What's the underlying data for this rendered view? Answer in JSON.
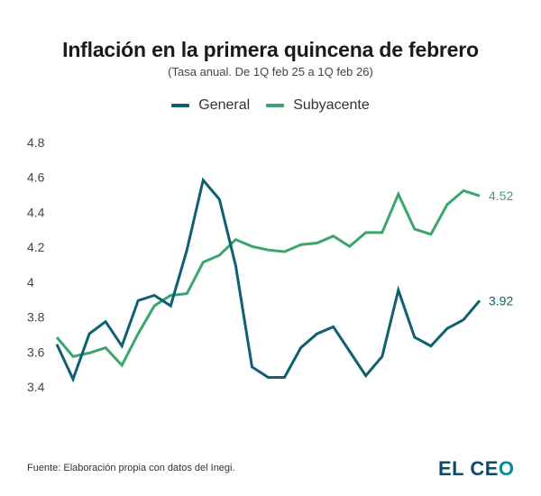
{
  "header": {
    "title": "Inflación en la primera quincena de febrero",
    "subtitle": "(Tasa anual. De 1Q feb 25 a 1Q feb 26)"
  },
  "footer": {
    "source": "Fuente: Elaboración propia con datos del Inegi.",
    "logo_main": "EL CE",
    "logo_last": "O"
  },
  "chart_data": {
    "type": "line",
    "title": "Inflación en la primera quincena de febrero",
    "subtitle": "(Tasa anual. De 1Q feb 25 a 1Q feb 26)",
    "xlabel": "",
    "ylabel": "",
    "ylim": [
      3.4,
      4.8
    ],
    "yticks": [
      4.8,
      4.6,
      4.4,
      4.2,
      4,
      3.8,
      3.6,
      3.4
    ],
    "ytick_labels": [
      "4.8",
      "4.6",
      "4.4",
      "4.2",
      "4",
      "3.8",
      "3.6",
      "3.4"
    ],
    "grid": false,
    "legend_position": "top-center",
    "x": [
      1,
      2,
      3,
      4,
      5,
      6,
      7,
      8,
      9,
      10,
      11,
      12,
      13,
      14,
      15,
      16,
      17,
      18,
      19,
      20,
      21,
      22,
      23,
      24,
      25,
      26,
      27
    ],
    "series": [
      {
        "name": "General",
        "color": "#0f6170",
        "values": [
          3.67,
          3.47,
          3.73,
          3.8,
          3.66,
          3.92,
          3.95,
          3.89,
          4.21,
          4.61,
          4.5,
          4.12,
          3.54,
          3.48,
          3.48,
          3.65,
          3.73,
          3.77,
          3.63,
          3.49,
          3.6,
          3.98,
          3.71,
          3.66,
          3.76,
          3.81,
          3.92
        ],
        "end_label": "3.92"
      },
      {
        "name": "Subyacente",
        "color": "#3ba56e",
        "values": [
          3.71,
          3.6,
          3.62,
          3.65,
          3.55,
          3.73,
          3.89,
          3.95,
          3.96,
          4.14,
          4.18,
          4.27,
          4.23,
          4.21,
          4.2,
          4.24,
          4.25,
          4.29,
          4.23,
          4.31,
          4.31,
          4.53,
          4.33,
          4.3,
          4.47,
          4.55,
          4.52
        ],
        "end_label": "4.52"
      }
    ]
  }
}
